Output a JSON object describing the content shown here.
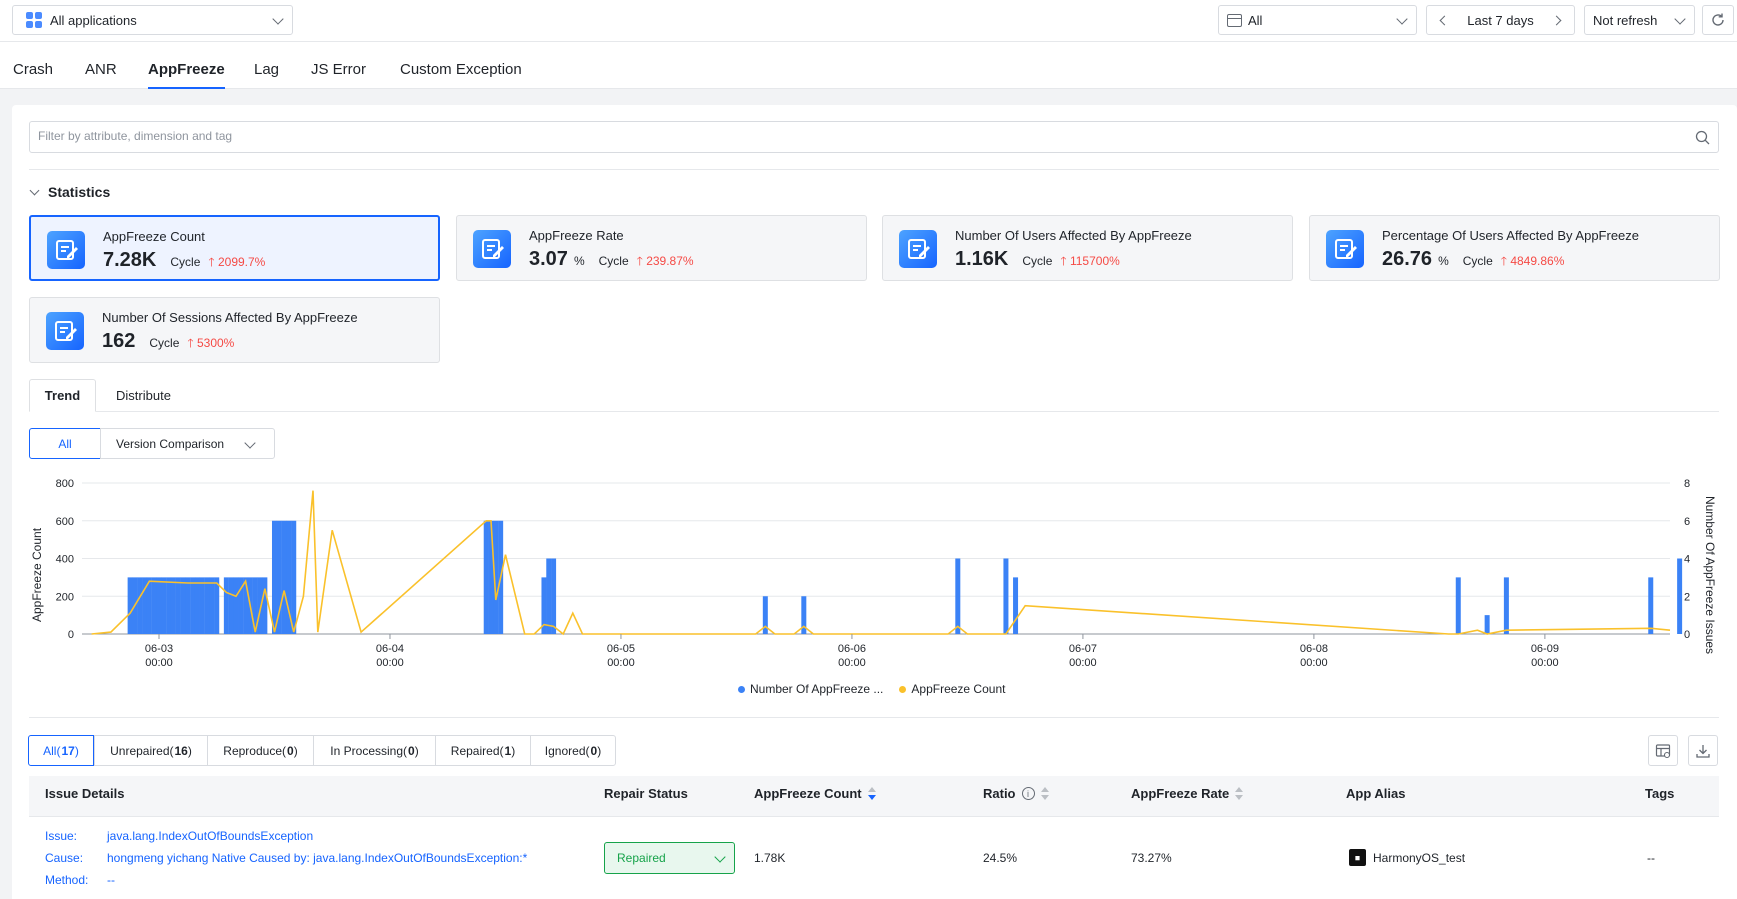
{
  "topbar": {
    "app_select": "All applications",
    "filter_select": "All",
    "date_range": "Last 7 days",
    "refresh_select": "Not refresh"
  },
  "tabs": [
    "Crash",
    "ANR",
    "AppFreeze",
    "Lag",
    "JS Error",
    "Custom Exception"
  ],
  "filter": {
    "placeholder": "Filter by attribute, dimension and tag"
  },
  "statistics": {
    "title": "Statistics",
    "cycle_label": "Cycle",
    "cards": [
      {
        "label": "AppFreeze Count",
        "value": "7.28K",
        "unit": "",
        "change": "2099.7%"
      },
      {
        "label": "AppFreeze Rate",
        "value": "3.07",
        "unit": "%",
        "change": "239.87%"
      },
      {
        "label": "Number Of Users Affected By AppFreeze",
        "value": "1.16K",
        "unit": "",
        "change": "115700%"
      },
      {
        "label": "Percentage Of Users Affected By AppFreeze",
        "value": "26.76",
        "unit": "%",
        "change": "4849.86%"
      },
      {
        "label": "Number Of Sessions Affected By AppFreeze",
        "value": "162",
        "unit": "",
        "change": "5300%"
      }
    ]
  },
  "view_tabs": {
    "trend": "Trend",
    "distribute": "Distribute"
  },
  "buttons": {
    "all": "All",
    "version_comparison": "Version Comparison"
  },
  "chart_data": {
    "type": "bar",
    "ylabel": "AppFreeze Count",
    "y2label": "Number Of AppFreeze Issues",
    "ylim": [
      0,
      800
    ],
    "y2lim": [
      0,
      8
    ],
    "yticks": [
      "0",
      "200",
      "400",
      "600",
      "800"
    ],
    "y2ticks": [
      "0",
      "2",
      "4",
      "6",
      "8"
    ],
    "xlim": [
      "06-02 16:00",
      "06-09 13:00"
    ],
    "xticks": [
      {
        "day": "06-03",
        "time": "00:00"
      },
      {
        "day": "06-04",
        "time": "00:00"
      },
      {
        "day": "06-05",
        "time": "00:00"
      },
      {
        "day": "06-06",
        "time": "00:00"
      },
      {
        "day": "06-07",
        "time": "00:00"
      },
      {
        "day": "06-08",
        "time": "00:00"
      },
      {
        "day": "06-09",
        "time": "00:00"
      }
    ],
    "legend": [
      "Number Of AppFreeze ...",
      "AppFreeze Count"
    ],
    "legend_position": "bottom",
    "bars": {
      "name": "Number Of AppFreeze Issues",
      "axis": "right",
      "x": [
        "06-02 21:00",
        "06-02 21:30",
        "06-02 22:00",
        "06-02 22:30",
        "06-02 23:00",
        "06-02 23:30",
        "06-03 00:00",
        "06-03 00:30",
        "06-03 01:00",
        "06-03 01:30",
        "06-03 02:00",
        "06-03 02:30",
        "06-03 03:00",
        "06-03 03:30",
        "06-03 04:00",
        "06-03 04:30",
        "06-03 05:00",
        "06-03 05:30",
        "06-03 06:00",
        "06-03 07:00",
        "06-03 07:30",
        "06-03 08:00",
        "06-03 08:30",
        "06-03 09:00",
        "06-03 09:30",
        "06-03 10:00",
        "06-03 10:30",
        "06-03 11:00",
        "06-03 12:00",
        "06-03 12:30",
        "06-03 13:00",
        "06-03 13:30",
        "06-03 14:00",
        "06-04 10:00",
        "06-04 10:30",
        "06-04 11:00",
        "06-04 11:30",
        "06-04 16:00",
        "06-04 16:30",
        "06-04 17:00",
        "06-05 15:00",
        "06-05 19:00",
        "06-06 11:00",
        "06-06 16:00",
        "06-06 17:00",
        "06-08 15:00",
        "06-08 18:00",
        "06-08 20:00",
        "06-09 11:00",
        "06-09 14:00"
      ],
      "values": [
        3,
        3,
        3,
        3,
        3,
        3,
        3,
        3,
        3,
        3,
        3,
        3,
        3,
        3,
        3,
        3,
        3,
        3,
        3,
        3,
        3,
        3,
        3,
        3,
        3,
        3,
        3,
        3,
        6,
        6,
        6,
        6,
        6,
        6,
        6,
        6,
        6,
        3,
        4,
        4,
        2,
        2,
        4,
        4,
        3,
        3,
        1,
        3,
        3,
        4
      ]
    },
    "lines": {
      "name": "AppFreeze Count",
      "axis": "left",
      "x": [
        "06-02 17:00",
        "06-02 19:00",
        "06-02 21:00",
        "06-02 23:00",
        "06-03 03:00",
        "06-03 06:00",
        "06-03 07:00",
        "06-03 08:00",
        "06-03 09:00",
        "06-03 10:00",
        "06-03 11:00",
        "06-03 12:00",
        "06-03 13:00",
        "06-03 14:00",
        "06-03 15:00",
        "06-03 16:00",
        "06-03 16:30",
        "06-03 18:00",
        "06-03 21:00",
        "06-04 10:00",
        "06-04 10:30",
        "06-04 11:00",
        "06-04 12:00",
        "06-04 14:00",
        "06-04 15:00",
        "06-04 16:00",
        "06-04 17:00",
        "06-04 18:00",
        "06-04 19:00",
        "06-04 20:00",
        "06-05 14:00",
        "06-05 15:00",
        "06-05 16:00",
        "06-05 18:00",
        "06-05 19:00",
        "06-05 20:00",
        "06-06 10:00",
        "06-06 11:00",
        "06-06 12:00",
        "06-06 15:00",
        "06-06 16:00",
        "06-06 18:00",
        "06-08 14:00",
        "06-08 15:00",
        "06-08 17:00",
        "06-08 18:00",
        "06-08 20:00",
        "06-09 11:00",
        "06-09 13:00"
      ],
      "values": [
        0,
        10,
        110,
        280,
        270,
        270,
        220,
        200,
        280,
        10,
        240,
        10,
        230,
        10,
        200,
        760,
        10,
        550,
        10,
        600,
        600,
        180,
        420,
        0,
        0,
        50,
        40,
        0,
        110,
        0,
        0,
        40,
        0,
        0,
        40,
        0,
        0,
        40,
        0,
        0,
        0,
        150,
        0,
        0,
        20,
        0,
        20,
        30,
        20
      ]
    }
  },
  "issue_filters": [
    {
      "label": "All",
      "count": "17"
    },
    {
      "label": "Unrepaired",
      "count": "16"
    },
    {
      "label": "Reproduce",
      "count": "0"
    },
    {
      "label": "In Processing",
      "count": "0"
    },
    {
      "label": "Repaired",
      "count": "1"
    },
    {
      "label": "Ignored",
      "count": "0"
    }
  ],
  "table": {
    "headers": {
      "issue_details": "Issue Details",
      "repair_status": "Repair Status",
      "appfreeze_count": "AppFreeze Count",
      "ratio": "Ratio",
      "appfreeze_rate": "AppFreeze Rate",
      "app_alias": "App Alias",
      "tags": "Tags"
    },
    "rows": [
      {
        "issue_label": "Issue:",
        "issue": "java.lang.IndexOutOfBoundsException",
        "cause_label": "Cause:",
        "cause": "hongmeng yichang Native Caused by: java.lang.IndexOutOfBoundsException:*",
        "method_label": "Method:",
        "method": "--",
        "repair_status": "Repaired",
        "count": "1.78K",
        "ratio": "24.5%",
        "rate": "73.27%",
        "app_alias": "HarmonyOS_test",
        "tags": "--"
      }
    ]
  },
  "colors": {
    "accent": "#1664ff",
    "bar": "#3b82f6",
    "line": "#fac12b",
    "up": "#f54a45",
    "repaired": "#16a34a"
  }
}
